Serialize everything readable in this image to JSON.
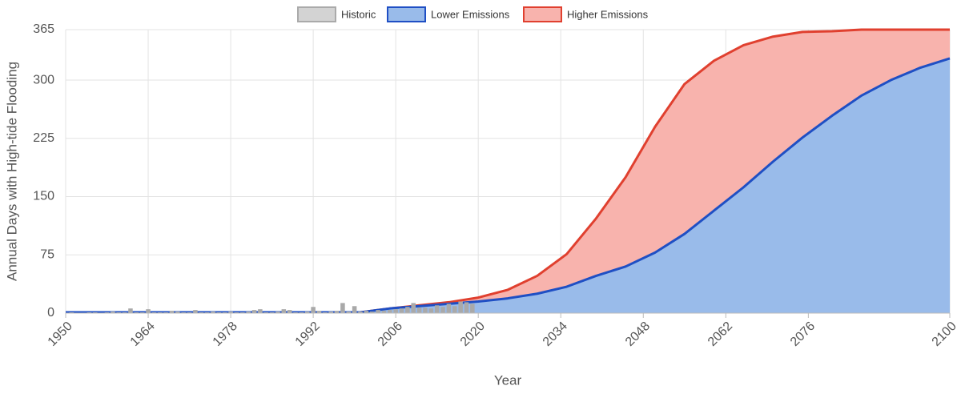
{
  "chart_data": {
    "type": "area",
    "xlabel": "Year",
    "ylabel": "Annual Days with High-tide Flooding",
    "xlim": [
      1950,
      2100
    ],
    "xticks": [
      1950,
      1964,
      1978,
      1992,
      2006,
      2020,
      2034,
      2048,
      2062,
      2076,
      2100
    ],
    "ylim": [
      0,
      365
    ],
    "yticks": [
      0,
      75,
      150,
      225,
      300,
      365
    ],
    "grid": true,
    "legend": "top",
    "series": [
      {
        "name": "Historic",
        "type": "bar",
        "color": "#a9a9a9",
        "fill": "#d3d3d3",
        "border": "#aaaaaa",
        "x": [
          1950,
          1951,
          1952,
          1953,
          1954,
          1955,
          1956,
          1957,
          1958,
          1959,
          1960,
          1961,
          1962,
          1963,
          1964,
          1965,
          1966,
          1967,
          1968,
          1969,
          1970,
          1971,
          1972,
          1973,
          1974,
          1975,
          1976,
          1977,
          1978,
          1979,
          1980,
          1981,
          1982,
          1983,
          1984,
          1985,
          1986,
          1987,
          1988,
          1989,
          1990,
          1991,
          1992,
          1993,
          1994,
          1995,
          1996,
          1997,
          1998,
          1999,
          2000,
          2001,
          2002,
          2003,
          2004,
          2005,
          2006,
          2007,
          2008,
          2009,
          2010,
          2011,
          2012,
          2013,
          2014,
          2015,
          2016,
          2017,
          2018,
          2019
        ],
        "values": [
          0,
          1,
          0,
          0,
          1,
          1,
          0,
          1,
          2,
          1,
          1,
          6,
          1,
          1,
          5,
          1,
          1,
          1,
          3,
          2,
          1,
          1,
          4,
          1,
          1,
          2,
          1,
          1,
          2,
          1,
          1,
          2,
          4,
          5,
          1,
          1,
          2,
          5,
          4,
          1,
          1,
          2,
          8,
          3,
          1,
          2,
          3,
          13,
          2,
          9,
          2,
          3,
          2,
          4,
          3,
          4,
          5,
          6,
          8,
          13,
          7,
          7,
          6,
          10,
          8,
          12,
          9,
          15,
          14,
          12
        ]
      },
      {
        "name": "Lower Emissions",
        "type": "area",
        "color": "#1f4fc4",
        "fill": "#99bbea",
        "x": [
          1950,
          1955,
          1960,
          1965,
          1970,
          1975,
          1980,
          1985,
          1990,
          1995,
          2000,
          2005,
          2010,
          2015,
          2020,
          2025,
          2030,
          2035,
          2040,
          2045,
          2050,
          2055,
          2060,
          2065,
          2070,
          2075,
          2080,
          2085,
          2090,
          2095,
          2100
        ],
        "values": [
          1,
          1,
          1,
          1,
          1,
          1,
          1,
          1,
          1,
          1,
          1,
          6,
          9,
          12,
          15,
          19,
          25,
          34,
          48,
          60,
          78,
          102,
          132,
          162,
          195,
          226,
          254,
          280,
          300,
          316,
          328
        ]
      },
      {
        "name": "Higher Emissions",
        "type": "area",
        "color": "#e0402f",
        "fill": "#f8b3ad",
        "x": [
          1950,
          1955,
          1960,
          1965,
          1970,
          1975,
          1980,
          1985,
          1990,
          1995,
          2000,
          2005,
          2010,
          2015,
          2020,
          2025,
          2030,
          2035,
          2040,
          2045,
          2050,
          2055,
          2060,
          2065,
          2070,
          2075,
          2080,
          2085,
          2090,
          2095,
          2100
        ],
        "values": [
          1,
          1,
          1,
          1,
          1,
          1,
          1,
          1,
          1,
          1,
          1,
          6,
          10,
          14,
          20,
          30,
          48,
          76,
          122,
          175,
          240,
          295,
          325,
          345,
          356,
          362,
          363,
          365,
          365,
          365,
          365
        ]
      }
    ]
  }
}
